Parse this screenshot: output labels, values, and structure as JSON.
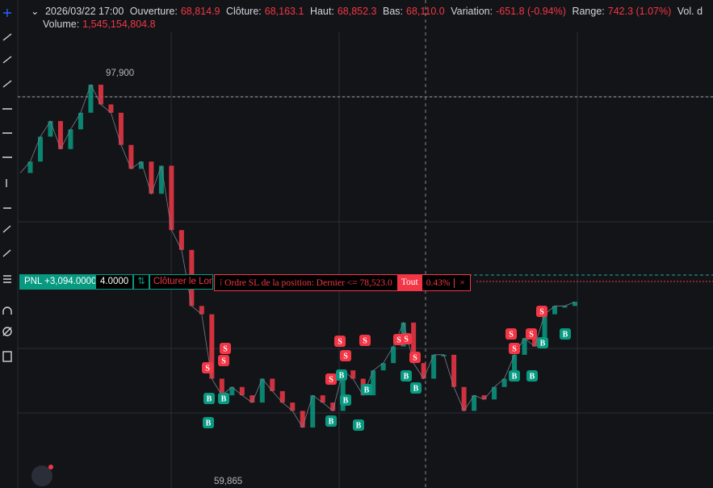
{
  "header": {
    "chevron": "⌄",
    "datetime": "2026/03/22 17:00",
    "open_label": "Ouverture:",
    "open": "68,814.9",
    "close_label": "Clôture:",
    "close": "68,163.1",
    "high_label": "Haut:",
    "high": "68,852.3",
    "low_label": "Bas:",
    "low": "68,110.0",
    "change_label": "Variation:",
    "change": "-651.8 (-0.94%)",
    "range_label": "Range:",
    "range": "742.3 (1.07%)",
    "vol_cut": "Vol. d",
    "volume_label": "Volume:",
    "volume": "1,545,154,804.8"
  },
  "chart": {
    "high_marker": "97,900",
    "low_marker": "59,865",
    "closes": [
      89000,
      90100,
      92500,
      94000,
      91300,
      93200,
      94800,
      97500,
      95600,
      94800,
      91700,
      89400,
      90100,
      87000,
      89700,
      83500,
      81600,
      76200,
      75400,
      69200,
      67600,
      68400,
      67600,
      66900,
      69200,
      68000,
      66900,
      66100,
      64500,
      67600,
      66900,
      66100,
      70000,
      69200,
      67600,
      70000,
      70700,
      72300,
      74600,
      70700,
      69200,
      71500,
      71500,
      68400,
      66100,
      67600,
      67200,
      68400,
      69200,
      71500,
      73100,
      72300,
      75400,
      76200,
      76200,
      76600
    ],
    "markers": [
      "S",
      "S",
      "B",
      "B",
      "B",
      "S",
      "S",
      "S",
      "B",
      "B",
      "B",
      "S",
      "B",
      "S",
      "B",
      "S",
      "B",
      "S",
      "B",
      "S",
      "S",
      "S",
      "B",
      "B",
      "S",
      "S",
      "B",
      "B"
    ]
  },
  "position": {
    "pnl": "PNL +3,094.0000",
    "qty": "4.0000",
    "swap": "⇅",
    "close_long": "Clôturer le Long",
    "sl_order": "⁞ Ordre SL de la position: Dernier <= 78,523.0",
    "all": "Tout",
    "pct": "0.43%",
    "x": "×"
  }
}
